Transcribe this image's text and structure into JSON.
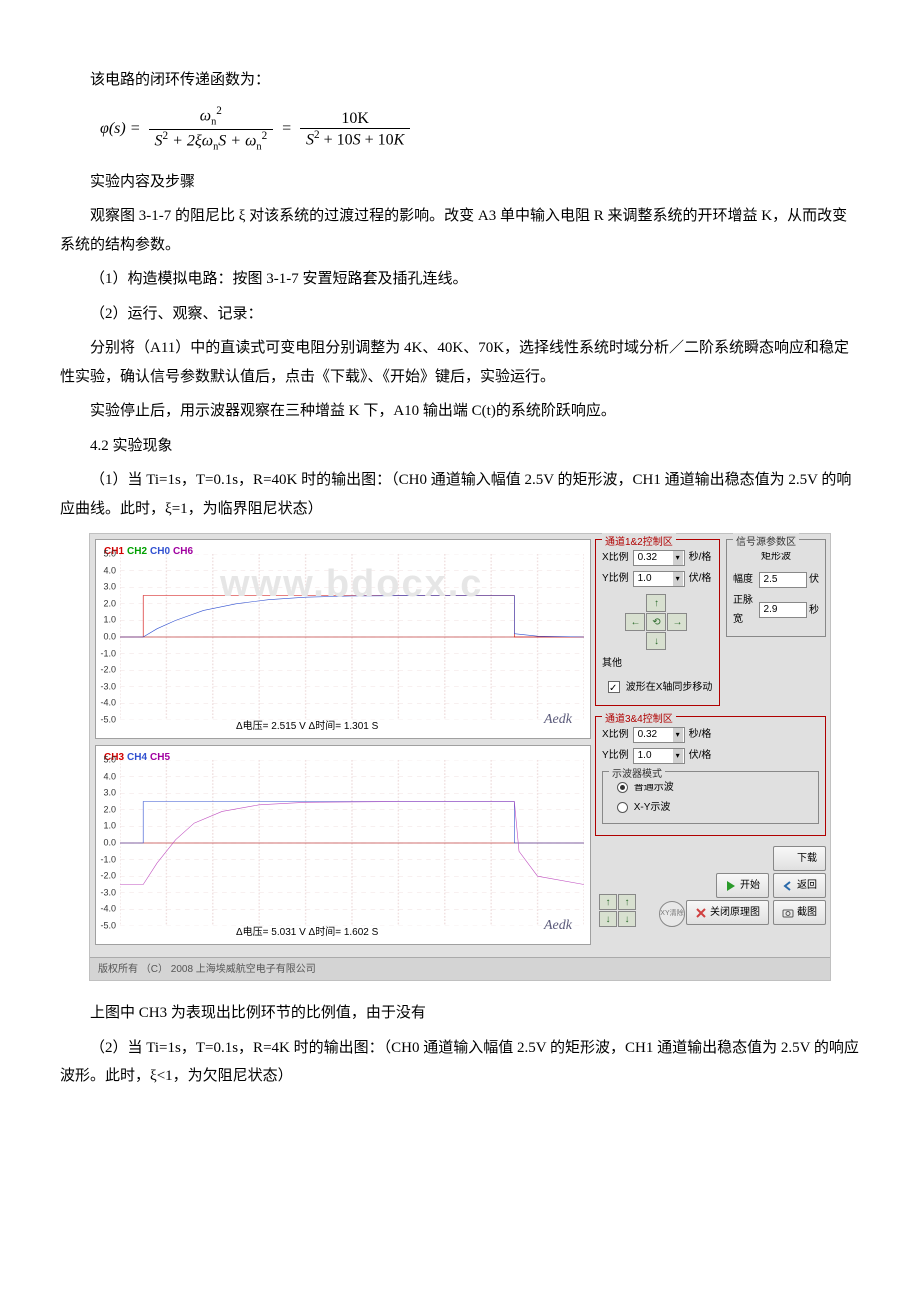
{
  "text": {
    "p1": "该电路的闭环传递函数为：",
    "formula_phi": "φ(s) =",
    "formula_eq": "=",
    "num1": "ω",
    "den1a": "S² + 2ξω",
    "den1b": "S + ω",
    "num2": "10K",
    "den2": "S² + 10S + 10K",
    "p2": "实验内容及步骤",
    "p3": "观察图 3-1-7 的阻尼比 ξ 对该系统的过渡过程的影响。改变 A3 单中输入电阻 R 来调整系统的开环增益 K，从而改变系统的结构参数。",
    "p4": "（1）构造模拟电路：按图 3-1-7 安置短路套及插孔连线。",
    "p5": "（2）运行、观察、记录：",
    "p6": "分别将（A11）中的直读式可变电阻分别调整为 4K、40K、70K，选择线性系统时域分析／二阶系统瞬态响应和稳定性实验，确认信号参数默认值后，点击《下载》、《开始》键后，实验运行。",
    "p7": "实验停止后，用示波器观察在三种增益 K 下，A10 输出端 C(t)的系统阶跃响应。",
    "p8": "4.2 实验现象",
    "p9": "（1）当 Ti=1s，T=0.1s，R=40K 时的输出图：（CH0 通道输入幅值 2.5V 的矩形波，CH1 通道输出稳态值为 2.5V 的响应曲线。此时，ξ=1，为临界阻尼状态）",
    "p10": "上图中 CH3 为表现出比例环节的比例值，由于没有",
    "p11": "（2）当 Ti=1s，T=0.1s，R=4K 时的输出图：（CH0 通道输入幅值 2.5V 的矩形波，CH1 通道输出稳态值为 2.5V 的响应波形。此时，ξ<1，为欠阻尼状态）"
  },
  "watermark": "www.bdocx.c",
  "chart_top": {
    "ch_labels": [
      {
        "t": "CH1",
        "c": "#d00000"
      },
      {
        "t": "CH2",
        "c": "#00a000"
      },
      {
        "t": "CH0",
        "c": "#3050d0"
      },
      {
        "t": "CH6",
        "c": "#a000a0"
      }
    ],
    "ylim": [
      -5,
      5
    ],
    "yticks": [
      5.0,
      4.0,
      3.0,
      2.0,
      1.0,
      0.0,
      -1.0,
      -2.0,
      -3.0,
      -4.0,
      -5.0
    ],
    "grid_color": "#f0e0e0",
    "axis_zero_color": "#c04040",
    "series": {
      "square": {
        "color": "#d00000",
        "pts": [
          [
            0,
            0
          ],
          [
            5,
            0
          ],
          [
            5,
            2.5
          ],
          [
            85,
            2.5
          ],
          [
            85,
            0
          ],
          [
            100,
            0
          ]
        ]
      },
      "response": {
        "color": "#3050d0",
        "pts": [
          [
            0,
            0
          ],
          [
            5,
            0
          ],
          [
            8,
            0.5
          ],
          [
            12,
            1.0
          ],
          [
            18,
            1.6
          ],
          [
            25,
            2.0
          ],
          [
            32,
            2.25
          ],
          [
            40,
            2.4
          ],
          [
            50,
            2.47
          ],
          [
            60,
            2.49
          ],
          [
            85,
            2.5
          ],
          [
            85,
            0.2
          ],
          [
            90,
            0.05
          ],
          [
            100,
            0
          ]
        ]
      }
    },
    "info": "Δ电压= 2.515 V        Δ时间= 1.301 S",
    "brand": "Aedk"
  },
  "chart_bottom": {
    "ch_labels": [
      {
        "t": "CH3",
        "c": "#d00000"
      },
      {
        "t": "CH4",
        "c": "#3050d0"
      },
      {
        "t": "CH5",
        "c": "#a000a0"
      }
    ],
    "ylim": [
      -5,
      5
    ],
    "yticks": [
      5.0,
      4.0,
      3.0,
      2.0,
      1.0,
      0.0,
      -1.0,
      -2.0,
      -3.0,
      -4.0,
      -5.0
    ],
    "grid_color": "#f0e0e0",
    "axis_zero_color": "#c04040",
    "series": {
      "blue_step": {
        "color": "#3050d0",
        "pts": [
          [
            0,
            0
          ],
          [
            5,
            0
          ],
          [
            5,
            2.5
          ],
          [
            85,
            2.5
          ],
          [
            85,
            0
          ],
          [
            100,
            0
          ]
        ]
      },
      "magenta": {
        "color": "#c050c0",
        "pts": [
          [
            0,
            -2.5
          ],
          [
            5,
            -2.5
          ],
          [
            8,
            -1.2
          ],
          [
            12,
            0.2
          ],
          [
            16,
            1.2
          ],
          [
            22,
            1.9
          ],
          [
            30,
            2.3
          ],
          [
            40,
            2.45
          ],
          [
            60,
            2.5
          ],
          [
            85,
            2.5
          ],
          [
            86,
            -0.5
          ],
          [
            90,
            -2.0
          ],
          [
            100,
            -2.5
          ]
        ]
      }
    },
    "info": "Δ电压= 5.031 V        Δ时间= 1.602 S",
    "brand": "Aedk"
  },
  "controls": {
    "group1_title": "通道1&2控制区",
    "group3_title": "通道3&4控制区",
    "x_scale_label": "X比例",
    "y_scale_label": "Y比例",
    "x_scale_val": "0.32",
    "y_scale_val": "1.0",
    "x_unit": "秒/格",
    "y_unit": "伏/格",
    "other_label": "其他",
    "sync_label": "波形在X轴同步移动",
    "sig_box_title": "信号源参数区",
    "sig_wave": "矩形波",
    "sig_amp_label": "幅度",
    "sig_amp_val": "2.5",
    "sig_amp_unit": "伏",
    "sig_pw_label": "正脉宽",
    "sig_pw_val": "2.9",
    "sig_pw_unit": "秒",
    "osc_mode_title": "示波器模式",
    "osc_normal": "普通示波",
    "osc_xt": "X-Y示波",
    "xy_clear": "XY清除",
    "btn_download": "下载",
    "btn_start": "开始",
    "btn_return": "返回",
    "btn_close_diag": "关闭原理图",
    "btn_screenshot": "截图"
  },
  "statusbar": "版权所有 （C） 2008    上海埃威航空电子有限公司",
  "colors": {
    "bg": "#e0e0e0",
    "field_border": "#b00000",
    "green": "#2a9a2a",
    "red_icon": "#d04040"
  }
}
